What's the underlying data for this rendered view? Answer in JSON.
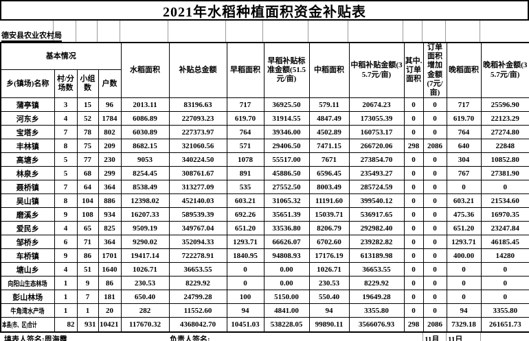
{
  "title": "2021年水稻种植面积资金补贴表",
  "bureau": "德安县农业农村局",
  "table": {
    "header": {
      "group": "基本情况",
      "sub": [
        "乡(镇场)名称",
        "村/分场数",
        "小组数",
        "户数"
      ],
      "cols": [
        "水稻面积",
        "补贴总金额",
        "早稻面积",
        "早稻补贴标准金额(51.5元/亩)",
        "中稻面积",
        "中稻补贴金额(35.7元/亩)",
        "其中.订单面积",
        "订单面积增加金额(7元/亩)",
        "晚稻面积",
        "晚稻补金额(35.7元/亩)"
      ]
    },
    "rows": [
      {
        "name": "蒲亭镇",
        "values": [
          "3",
          "15",
          "96",
          "2013.11",
          "83196.63",
          "717",
          "36925.50",
          "579.11",
          "20674.23",
          "0",
          "0",
          "717",
          "25596.90"
        ]
      },
      {
        "name": "河东乡",
        "values": [
          "4",
          "52",
          "1784",
          "6086.89",
          "227093.23",
          "619.70",
          "31914.55",
          "4847.49",
          "173055.39",
          "0",
          "0",
          "619.70",
          "22123.29"
        ]
      },
      {
        "name": "宝塔乡",
        "values": [
          "7",
          "78",
          "802",
          "6030.89",
          "227373.97",
          "764",
          "39346.00",
          "4502.89",
          "160753.17",
          "0",
          "0",
          "764",
          "27274.80"
        ]
      },
      {
        "name": "丰林镇",
        "values": [
          "8",
          "75",
          "209",
          "8682.15",
          "321060.56",
          "571",
          "29406.50",
          "7471.15",
          "266720.06",
          "298",
          "2086",
          "640",
          "22848"
        ]
      },
      {
        "name": "高塘乡",
        "values": [
          "5",
          "77",
          "230",
          "9053",
          "340224.50",
          "1078",
          "55517.00",
          "7671",
          "273854.70",
          "0",
          "0",
          "304",
          "10852.80"
        ]
      },
      {
        "name": "林泉乡",
        "values": [
          "5",
          "68",
          "299",
          "8254.45",
          "308761.67",
          "891",
          "45886.50",
          "6596.45",
          "235493.27",
          "0",
          "0",
          "767",
          "27381.90"
        ]
      },
      {
        "name": "聂桥镇",
        "values": [
          "7",
          "64",
          "364",
          "8538.49",
          "313277.09",
          "535",
          "27552.50",
          "8003.49",
          "285724.59",
          "0",
          "0",
          "0",
          "0"
        ]
      },
      {
        "name": "吴山镇",
        "values": [
          "8",
          "104",
          "886",
          "12398.02",
          "452140.03",
          "603.21",
          "31065.32",
          "11191.60",
          "399540.12",
          "0",
          "0",
          "603.21",
          "21534.60"
        ]
      },
      {
        "name": "磨溪乡",
        "values": [
          "9",
          "108",
          "934",
          "16207.33",
          "589539.39",
          "692.26",
          "35651.39",
          "15039.71",
          "536917.65",
          "0",
          "0",
          "475.36",
          "16970.35"
        ]
      },
      {
        "name": "爱民乡",
        "values": [
          "4",
          "65",
          "825",
          "9509.19",
          "349767.04",
          "651.20",
          "33536.80",
          "8206.79",
          "292982.40",
          "0",
          "0",
          "651.20",
          "23247.84"
        ]
      },
      {
        "name": "邹桥乡",
        "values": [
          "6",
          "71",
          "364",
          "9290.02",
          "352094.33",
          "1293.71",
          "66626.07",
          "6702.60",
          "239282.82",
          "0",
          "0",
          "1293.71",
          "46185.45"
        ]
      },
      {
        "name": "车桥镇",
        "values": [
          "9",
          "86",
          "1701",
          "19417.14",
          "722278.91",
          "1840.95",
          "94808.93",
          "17176.19",
          "613189.98",
          "0",
          "0",
          "400.00",
          "14280"
        ]
      },
      {
        "name": "塘山乡",
        "values": [
          "4",
          "51",
          "1640",
          "1026.71",
          "36653.55",
          "0",
          "0.00",
          "1026.71",
          "36653.55",
          "0",
          "0",
          "0",
          "0"
        ]
      },
      {
        "name": "向阳山生态林场",
        "values": [
          "1",
          "9",
          "86",
          "230.53",
          "8229.92",
          "0",
          "0.00",
          "230.53",
          "8229.92",
          "0",
          "0",
          "0",
          "0"
        ]
      },
      {
        "name": "彭山林场",
        "values": [
          "1",
          "7",
          "181",
          "650.40",
          "24799.28",
          "100",
          "5150.00",
          "550.40",
          "19649.28",
          "0",
          "0",
          "0",
          "0"
        ]
      },
      {
        "name": "牛角湾水产场",
        "values": [
          "1",
          "1",
          "20",
          "282",
          "11552.60",
          "94",
          "4841.00",
          "94",
          "3355.80",
          "0",
          "0",
          "94",
          "3355.80"
        ]
      }
    ],
    "total": {
      "label": "本县(市、区)合计",
      "values": [
        "82",
        "931",
        "10421",
        "117670.32",
        "4368042.70",
        "10451.03",
        "538228.05",
        "99890.11",
        "3566076.93",
        "298",
        "2086",
        "7329.18",
        "261651.73"
      ]
    }
  },
  "footer": {
    "filler_signature": "填表人签名:周海霞",
    "manager_signature": "负责人签名:",
    "month": "11月",
    "day": "11日"
  }
}
